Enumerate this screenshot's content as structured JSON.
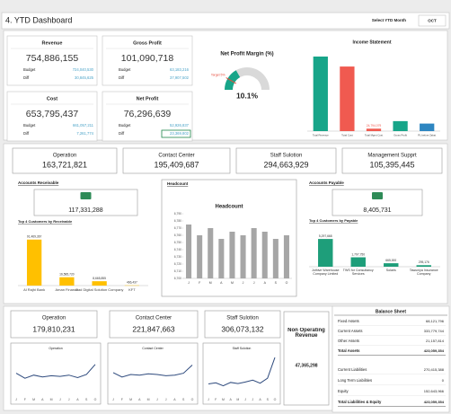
{
  "header": {
    "title": "4. YTD Dashboard",
    "select_label": "Select YTD Month",
    "month": "OCT"
  },
  "kpi_cards": [
    {
      "title": "Revenue",
      "value": "754,886,155",
      "budget_label": "Budget",
      "budget": "724,040,530",
      "diff_label": "Diff",
      "diff": "30,845,625"
    },
    {
      "title": "Gross Profit",
      "value": "101,090,718",
      "budget_label": "Budget",
      "budget": "63,183,216",
      "diff_label": "Diff",
      "diff": "37,907,502"
    },
    {
      "title": "Cost",
      "value": "653,795,437",
      "budget_label": "Budget",
      "budget": "661,057,211",
      "diff_label": "Diff",
      "diff": "7,261,774"
    },
    {
      "title": "Net Profit",
      "value": "76,296,639",
      "budget_label": "Budget",
      "budget": "52,926,837",
      "diff_label": "Diff",
      "diff": "23,369,802"
    }
  ],
  "segments_budget": [
    {
      "label": "Operation",
      "value": "163,721,821"
    },
    {
      "label": "Contact Center",
      "value": "195,409,687"
    },
    {
      "label": "Staff Sulotion",
      "value": "294,663,929"
    },
    {
      "label": "Management Supprt",
      "value": "105,395,445"
    }
  ],
  "receivable": {
    "title": "Accounts Receivable",
    "value": "117,331,288"
  },
  "headcount": {
    "title": "Headcount"
  },
  "payable": {
    "title": "Accounts Payable",
    "value": "8,405,731"
  },
  "segments_actual": [
    {
      "label": "Operation",
      "value": "179,810,231"
    },
    {
      "label": "Contact Center",
      "value": "221,847,663"
    },
    {
      "label": "Staff Sulotion",
      "value": "306,073,132"
    }
  ],
  "non_operating": {
    "label": "Non Operating Revenue",
    "value": "47,365,298"
  },
  "balance_sheet": {
    "title": "Balance Sheet",
    "rows": [
      [
        "Fixed Assets",
        "68,121,796"
      ],
      [
        "Current Assets",
        "333,779,744"
      ],
      [
        "Other Assets",
        "21,157,814"
      ],
      [
        "Total Assets",
        "423,059,354"
      ],
      [
        "Current Liabilities",
        "270,415,388"
      ],
      [
        "Long Term Liabilities",
        "0"
      ],
      [
        "Equity",
        "152,643,966"
      ],
      [
        "Total Liabilities & Equity",
        "423,059,354"
      ]
    ]
  },
  "chart_data": [
    {
      "type": "gauge",
      "title": "Net Profit Margin (%)",
      "value": 10.1,
      "value_label": "10.1%",
      "target": 5,
      "target_label": "Target 5%",
      "ylim": [
        0,
        30
      ],
      "color": "#17a589",
      "track_color": "#d9d9d9",
      "target_color": "#e74c3c"
    },
    {
      "type": "bar",
      "title": "Income Statement",
      "categories": [
        "Total Revenue",
        "Total Cost",
        "Total Mgmt Cost",
        "Gross Profit",
        "PL before Zakat"
      ],
      "values": [
        754886155,
        653795437,
        24794079,
        101090718,
        76296639
      ],
      "value_labels": [
        null,
        null,
        "24,794,079",
        null,
        null
      ],
      "colors": [
        "#17a589",
        "#f05a50",
        "#f05a50",
        "#17a589",
        "#2e86c1"
      ],
      "ylim": [
        0,
        800000000
      ]
    },
    {
      "type": "bar",
      "title": "Top 4 Customers by Receivable",
      "categories": [
        "Al Rajhi Bank",
        "Aman Finance",
        "Gad Digital Solution Company",
        "KFT"
      ],
      "values": [
        91469367,
        16585720,
        8665855,
        466437
      ],
      "value_labels": [
        "91,469,367",
        "16,585,720",
        "8,665,855",
        "466,437"
      ],
      "color": "#ffc000",
      "ylim": [
        0,
        100000000
      ]
    },
    {
      "type": "bar",
      "title": "Headcount",
      "categories": [
        "J",
        "F",
        "M",
        "A",
        "M",
        "J",
        "J",
        "A",
        "S",
        "O"
      ],
      "values": [
        6775,
        6760,
        6770,
        6755,
        6765,
        6760,
        6770,
        6765,
        6755,
        6760
      ],
      "color": "#a6a6a6",
      "ylim": [
        6700,
        6790
      ],
      "yticks": [
        {
          "value": 6700,
          "label": "6,700"
        },
        {
          "value": 6710,
          "label": "6,710"
        },
        {
          "value": 6720,
          "label": "6,720"
        },
        {
          "value": 6730,
          "label": "6,730"
        },
        {
          "value": 6740,
          "label": "6,740"
        },
        {
          "value": 6750,
          "label": "6,750"
        },
        {
          "value": 6760,
          "label": "6,760"
        },
        {
          "value": 6770,
          "label": "6,770"
        },
        {
          "value": 6780,
          "label": "6,780"
        },
        {
          "value": 6790,
          "label": "6,790"
        }
      ]
    },
    {
      "type": "bar",
      "title": "Top 4 Customers by Payable",
      "categories": [
        "Jothive Warehouse Company Limited",
        "TWS for Consultancy Services",
        "Solaris",
        "Tawuniya Insurance Company"
      ],
      "values": [
        5297668,
        1797750,
        665000,
        295176
      ],
      "value_labels": [
        "5,297,668",
        "1,797,750",
        "665,000",
        "295,176"
      ],
      "color": "#1e9e7a",
      "ylim": [
        0,
        6000000
      ]
    },
    {
      "type": "line",
      "title": "Operation",
      "categories": [
        "J",
        "F",
        "M",
        "A",
        "M",
        "J",
        "J",
        "A",
        "S",
        "O"
      ],
      "values": [
        18200000,
        17400000,
        17900000,
        17600000,
        17800000,
        17700000,
        17900000,
        17500000,
        18000000,
        19600000
      ],
      "color": "#2e4a7d",
      "ylim": [
        15000000,
        21000000
      ]
    },
    {
      "type": "line",
      "title": "Contact Center",
      "categories": [
        "J",
        "F",
        "M",
        "A",
        "M",
        "J",
        "J",
        "A",
        "S",
        "O"
      ],
      "values": [
        22300000,
        21600000,
        22000000,
        21900000,
        22100000,
        22000000,
        21800000,
        21900000,
        22200000,
        23500000
      ],
      "color": "#2e4a7d",
      "ylim": [
        19000000,
        25000000
      ]
    },
    {
      "type": "line",
      "title": "Staff Sulotion",
      "categories": [
        "J",
        "F",
        "M",
        "A",
        "M",
        "J",
        "J",
        "A",
        "S",
        "O"
      ],
      "values": [
        29500000,
        29800000,
        29000000,
        29900000,
        29600000,
        30000000,
        30500000,
        29700000,
        31000000,
        36500000
      ],
      "color": "#2e4a7d",
      "ylim": [
        27000000,
        37000000
      ]
    }
  ]
}
